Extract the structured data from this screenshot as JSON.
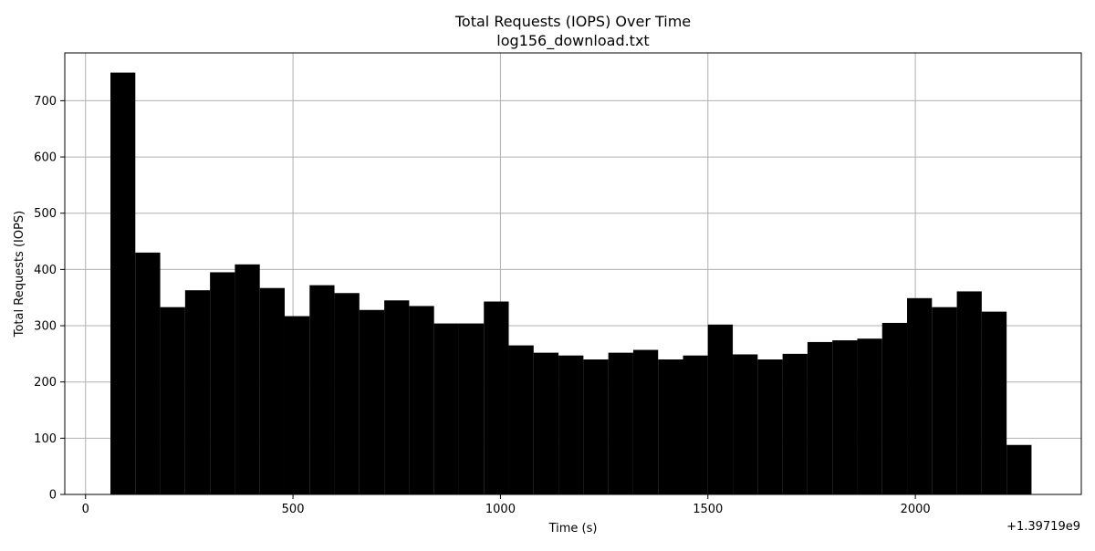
{
  "chart_data": {
    "type": "bar",
    "title": "Total Requests (IOPS) Over Time",
    "subtitle": "log156_download.txt",
    "xlabel": "Time (s)",
    "ylabel": "Total Requests (IOPS)",
    "x_offset_label": "+1.39719e9",
    "xlim": [
      -50,
      2400
    ],
    "ylim": [
      0,
      785
    ],
    "x_ticks": [
      0,
      500,
      1000,
      1500,
      2000
    ],
    "y_ticks": [
      0,
      100,
      200,
      300,
      400,
      500,
      600,
      700
    ],
    "grid": true,
    "bin_width": 60,
    "bar_color": "#000000",
    "x": [
      60,
      120,
      180,
      240,
      300,
      360,
      420,
      480,
      540,
      600,
      660,
      720,
      780,
      840,
      900,
      960,
      1020,
      1080,
      1140,
      1200,
      1260,
      1320,
      1380,
      1440,
      1500,
      1560,
      1620,
      1680,
      1740,
      1800,
      1860,
      1920,
      1980,
      2040,
      2100,
      2160,
      2220
    ],
    "values": [
      750,
      430,
      333,
      363,
      395,
      409,
      367,
      317,
      372,
      358,
      328,
      345,
      335,
      304,
      304,
      343,
      265,
      252,
      247,
      240,
      252,
      257,
      240,
      247,
      302,
      249,
      240,
      250,
      271,
      274,
      277,
      305,
      349,
      333,
      361,
      325,
      88
    ]
  }
}
